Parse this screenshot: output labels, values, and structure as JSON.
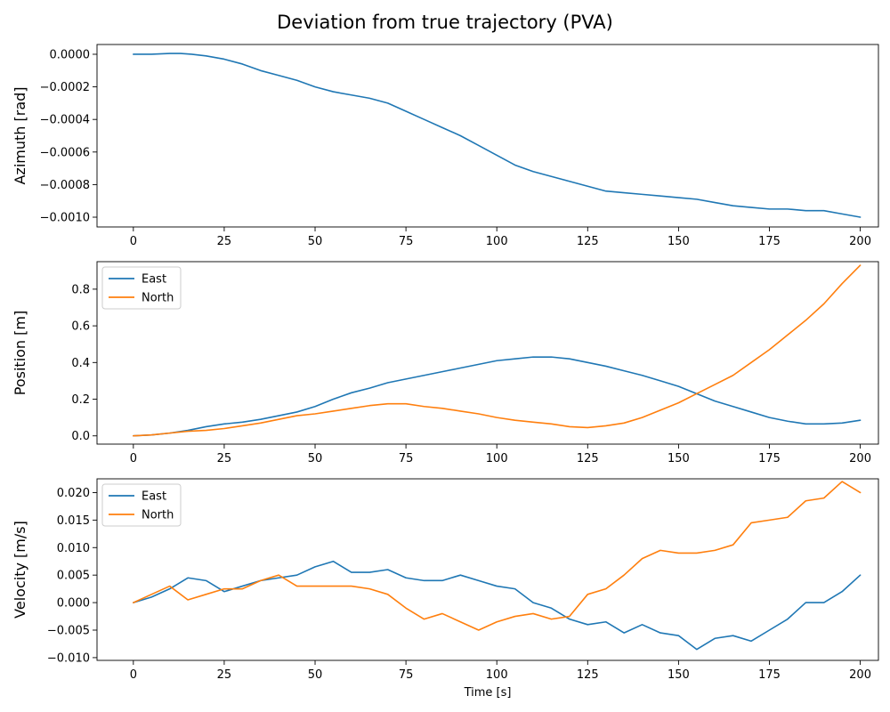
{
  "title": "Deviation from true trajectory (PVA)",
  "colors": {
    "east": "#1f77b4",
    "north": "#ff7f0e"
  },
  "chart_data": [
    {
      "type": "line",
      "ylabel": "Azimuth [rad]",
      "xlabel": "",
      "xlim": [
        -10,
        205
      ],
      "ylim": [
        -0.00106,
        6e-05
      ],
      "xticks": [
        0,
        25,
        50,
        75,
        100,
        125,
        150,
        175,
        200
      ],
      "xtick_labels": [
        "0",
        "25",
        "50",
        "75",
        "100",
        "125",
        "150",
        "175",
        "200"
      ],
      "yticks": [
        0,
        -0.0002,
        -0.0004,
        -0.0006,
        -0.0008,
        -0.001
      ],
      "ytick_labels": [
        "0.0000",
        "−0.0002",
        "−0.0004",
        "−0.0006",
        "−0.0008",
        "−0.0010"
      ],
      "legend": "none",
      "series": [
        {
          "color": "#1f77b4",
          "x": [
            0,
            5,
            10,
            13,
            16,
            20,
            25,
            30,
            35,
            40,
            45,
            50,
            55,
            60,
            65,
            70,
            75,
            80,
            85,
            90,
            95,
            100,
            105,
            110,
            115,
            120,
            125,
            130,
            135,
            140,
            145,
            150,
            155,
            160,
            165,
            170,
            175,
            180,
            185,
            190,
            195,
            200
          ],
          "y": [
            0,
            0,
            5e-06,
            5e-06,
            0,
            -1e-05,
            -3e-05,
            -6e-05,
            -0.0001,
            -0.00013,
            -0.00016,
            -0.0002,
            -0.00023,
            -0.00025,
            -0.00027,
            -0.0003,
            -0.00035,
            -0.0004,
            -0.00045,
            -0.0005,
            -0.00056,
            -0.00062,
            -0.00068,
            -0.00072,
            -0.00075,
            -0.00078,
            -0.00081,
            -0.00084,
            -0.00085,
            -0.00086,
            -0.00087,
            -0.00088,
            -0.00089,
            -0.00091,
            -0.00093,
            -0.00094,
            -0.00095,
            -0.00095,
            -0.00096,
            -0.00096,
            -0.00098,
            -0.001
          ]
        }
      ]
    },
    {
      "type": "line",
      "ylabel": "Position [m]",
      "xlabel": "",
      "xlim": [
        -10,
        205
      ],
      "ylim": [
        -0.045,
        0.95
      ],
      "xticks": [
        0,
        25,
        50,
        75,
        100,
        125,
        150,
        175,
        200
      ],
      "xtick_labels": [
        "0",
        "25",
        "50",
        "75",
        "100",
        "125",
        "150",
        "175",
        "200"
      ],
      "yticks": [
        0,
        0.2,
        0.4,
        0.6,
        0.8
      ],
      "ytick_labels": [
        "0.0",
        "0.2",
        "0.4",
        "0.6",
        "0.8"
      ],
      "legend": "upper-left",
      "series": [
        {
          "name": "East",
          "color": "#1f77b4",
          "x": [
            0,
            5,
            10,
            15,
            20,
            25,
            30,
            35,
            40,
            45,
            50,
            55,
            60,
            65,
            70,
            75,
            80,
            85,
            90,
            95,
            100,
            105,
            110,
            115,
            120,
            125,
            130,
            135,
            140,
            145,
            150,
            155,
            160,
            165,
            170,
            175,
            180,
            185,
            190,
            195,
            200
          ],
          "y": [
            0,
            0.005,
            0.015,
            0.03,
            0.05,
            0.065,
            0.075,
            0.09,
            0.11,
            0.13,
            0.16,
            0.2,
            0.235,
            0.26,
            0.29,
            0.31,
            0.33,
            0.35,
            0.37,
            0.39,
            0.41,
            0.42,
            0.43,
            0.43,
            0.42,
            0.4,
            0.38,
            0.355,
            0.33,
            0.3,
            0.27,
            0.23,
            0.19,
            0.16,
            0.13,
            0.1,
            0.08,
            0.065,
            0.065,
            0.07,
            0.085
          ]
        },
        {
          "name": "North",
          "color": "#ff7f0e",
          "x": [
            0,
            5,
            10,
            15,
            20,
            25,
            30,
            35,
            40,
            45,
            50,
            55,
            60,
            65,
            70,
            75,
            80,
            85,
            90,
            95,
            100,
            105,
            110,
            115,
            120,
            125,
            130,
            135,
            140,
            145,
            150,
            155,
            160,
            165,
            170,
            175,
            180,
            185,
            190,
            195,
            200
          ],
          "y": [
            0,
            0.005,
            0.015,
            0.025,
            0.03,
            0.04,
            0.055,
            0.07,
            0.09,
            0.11,
            0.12,
            0.135,
            0.15,
            0.165,
            0.175,
            0.175,
            0.16,
            0.15,
            0.135,
            0.12,
            0.1,
            0.085,
            0.075,
            0.065,
            0.05,
            0.045,
            0.055,
            0.07,
            0.1,
            0.14,
            0.18,
            0.23,
            0.28,
            0.33,
            0.4,
            0.47,
            0.55,
            0.63,
            0.72,
            0.83,
            0.93
          ]
        }
      ]
    },
    {
      "type": "line",
      "ylabel": "Velocity [m/s]",
      "xlabel": "Time [s]",
      "xlim": [
        -10,
        205
      ],
      "ylim": [
        -0.0105,
        0.0225
      ],
      "xticks": [
        0,
        25,
        50,
        75,
        100,
        125,
        150,
        175,
        200
      ],
      "xtick_labels": [
        "0",
        "25",
        "50",
        "75",
        "100",
        "125",
        "150",
        "175",
        "200"
      ],
      "yticks": [
        0.02,
        0.015,
        0.01,
        0.005,
        0,
        -0.005,
        -0.01
      ],
      "ytick_labels": [
        "0.020",
        "0.015",
        "0.010",
        "0.005",
        "0.000",
        "−0.005",
        "−0.010"
      ],
      "legend": "upper-left",
      "series": [
        {
          "name": "East",
          "color": "#1f77b4",
          "x": [
            0,
            5,
            10,
            15,
            20,
            25,
            30,
            35,
            40,
            45,
            50,
            55,
            60,
            65,
            70,
            75,
            80,
            85,
            90,
            95,
            100,
            105,
            110,
            115,
            120,
            125,
            130,
            135,
            140,
            145,
            150,
            155,
            160,
            165,
            170,
            175,
            180,
            185,
            190,
            195,
            200
          ],
          "y": [
            0,
            0.001,
            0.0025,
            0.0045,
            0.004,
            0.002,
            0.003,
            0.004,
            0.0045,
            0.005,
            0.0065,
            0.0075,
            0.0055,
            0.0055,
            0.006,
            0.0045,
            0.004,
            0.004,
            0.005,
            0.004,
            0.003,
            0.0025,
            0,
            -0.001,
            -0.003,
            -0.004,
            -0.0035,
            -0.0055,
            -0.004,
            -0.0055,
            -0.006,
            -0.0085,
            -0.0065,
            -0.006,
            -0.007,
            -0.005,
            -0.003,
            0,
            0,
            0.002,
            0.005
          ]
        },
        {
          "name": "North",
          "color": "#ff7f0e",
          "x": [
            0,
            5,
            10,
            15,
            20,
            25,
            30,
            35,
            40,
            45,
            50,
            55,
            60,
            65,
            70,
            75,
            80,
            85,
            90,
            95,
            100,
            105,
            110,
            115,
            120,
            125,
            130,
            135,
            140,
            145,
            150,
            155,
            160,
            165,
            170,
            175,
            180,
            185,
            190,
            195,
            200
          ],
          "y": [
            0,
            0.0015,
            0.003,
            0.0005,
            0.0015,
            0.0025,
            0.0025,
            0.004,
            0.005,
            0.003,
            0.003,
            0.003,
            0.003,
            0.0025,
            0.0015,
            -0.001,
            -0.003,
            -0.002,
            -0.0035,
            -0.005,
            -0.0035,
            -0.0025,
            -0.002,
            -0.003,
            -0.0025,
            0.0015,
            0.0025,
            0.005,
            0.008,
            0.0095,
            0.009,
            0.009,
            0.0095,
            0.0105,
            0.0145,
            0.015,
            0.0155,
            0.0185,
            0.019,
            0.022,
            0.02
          ]
        }
      ]
    }
  ]
}
